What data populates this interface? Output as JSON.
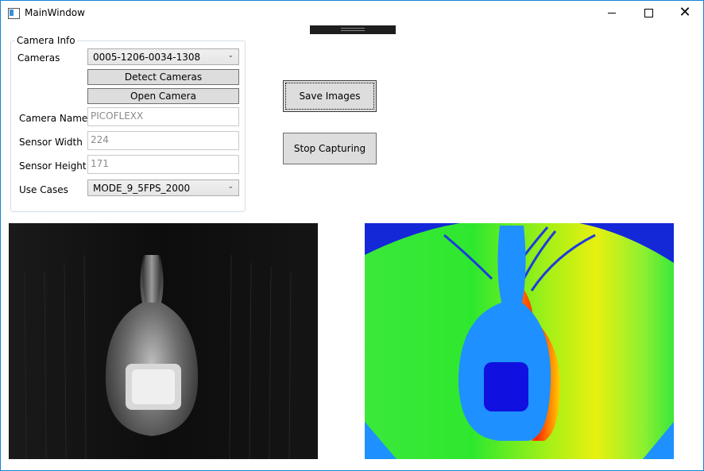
{
  "window": {
    "title": "MainWindow",
    "controls": {
      "minimize": "minimize-icon",
      "maximize": "maximize-icon",
      "close": "close-icon"
    }
  },
  "camera_info": {
    "legend": "Camera Info",
    "cameras_label": "Cameras",
    "cameras_selected": "0005-1206-0034-1308",
    "detect_button": "Detect Cameras",
    "open_button": "Open Camera",
    "camera_name_label": "Camera Name",
    "camera_name_value": "PICOFLEXX",
    "sensor_width_label": "Sensor Width",
    "sensor_width_value": "224",
    "sensor_height_label": "Sensor Height",
    "sensor_height_value": "171",
    "use_cases_label": "Use Cases",
    "use_cases_selected": "MODE_9_5FPS_2000"
  },
  "actions": {
    "save_images": "Save Images",
    "stop_capturing": "Stop Capturing"
  },
  "images": {
    "grayscale": "amplitude-image",
    "depth": "depth-image"
  },
  "colors": {
    "accent_border": "#1883d7",
    "button_bg": "#dddddd",
    "depth_blue": "#1e90ff",
    "depth_green": "#28e628",
    "depth_red": "#ff2a00"
  }
}
